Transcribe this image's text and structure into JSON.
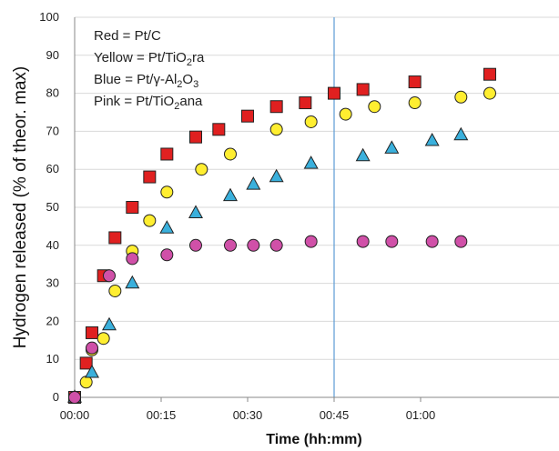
{
  "chart_data": {
    "type": "scatter",
    "xlabel": "Time (hh:mm)",
    "ylabel": "Hydrogen released (% of theor. max)",
    "xlim_minutes": [
      0,
      72
    ],
    "ylim": [
      0,
      100
    ],
    "y_ticks": [
      0,
      10,
      20,
      30,
      40,
      50,
      60,
      70,
      80,
      90,
      100
    ],
    "x_ticks": [
      {
        "minutes": 0,
        "label": "00:00"
      },
      {
        "minutes": 15,
        "label": "00:15"
      },
      {
        "minutes": 30,
        "label": "00:30"
      },
      {
        "minutes": 45,
        "label": "00:45"
      },
      {
        "minutes": 60,
        "label": "01:00"
      }
    ],
    "grid": "horizontal",
    "vertical_line_minutes": 45,
    "annotation_lines": [
      {
        "pre": "Red = Pt/C",
        "sub": "",
        "post": ""
      },
      {
        "pre": "Yellow = Pt/TiO",
        "sub": "2",
        "post": "ra"
      },
      {
        "pre": "Blue = Pt/γ-Al",
        "sub": "2",
        "post": "O",
        "sub2": "3"
      },
      {
        "pre": "Pink = Pt/TiO",
        "sub": "2",
        "post": "ana"
      }
    ],
    "series": [
      {
        "marker": "square",
        "color": "#e02020",
        "x": [
          0,
          2,
          3,
          5,
          7,
          10,
          13,
          16,
          21,
          25,
          30,
          35,
          40,
          45,
          50,
          59,
          72
        ],
        "y": [
          0,
          9,
          17,
          32,
          42,
          50,
          58,
          64,
          68.5,
          70.5,
          74,
          76.5,
          77.5,
          80,
          81,
          83,
          85
        ]
      },
      {
        "marker": "circle",
        "color": "#ffee30",
        "x": [
          0,
          2,
          3,
          5,
          7,
          10,
          13,
          16,
          22,
          27,
          35,
          41,
          47,
          52,
          59,
          67,
          72
        ],
        "y": [
          0,
          4,
          12.5,
          15.5,
          28,
          38.5,
          46.5,
          54,
          60,
          64,
          70.5,
          72.5,
          74.5,
          76.5,
          77.5,
          79,
          80
        ]
      },
      {
        "marker": "triangle",
        "color": "#3ab0dc",
        "x": [
          0,
          3,
          6,
          10,
          16,
          21,
          27,
          31,
          35,
          41,
          50,
          55,
          62,
          67
        ],
        "y": [
          0,
          6.5,
          19,
          30,
          44.5,
          48.5,
          53,
          56,
          58,
          61.5,
          63.5,
          65.5,
          67.5,
          69
        ]
      },
      {
        "marker": "circle",
        "color": "#d050a8",
        "x": [
          0,
          3,
          6,
          10,
          16,
          21,
          27,
          31,
          35,
          41,
          50,
          55,
          62,
          67
        ],
        "y": [
          0,
          13,
          32,
          36.5,
          37.5,
          40,
          40,
          40,
          40,
          41,
          41,
          41,
          41,
          41
        ]
      }
    ]
  }
}
